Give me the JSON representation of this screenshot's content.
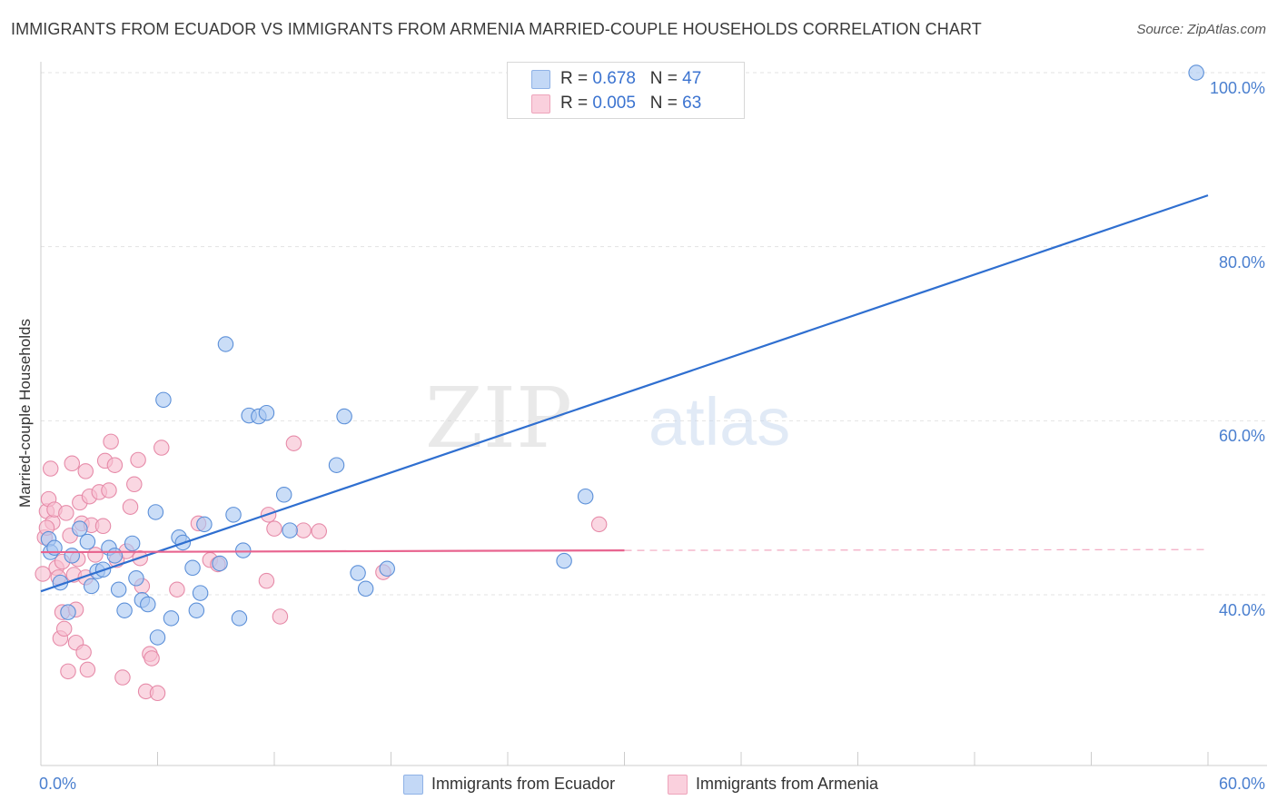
{
  "header": {
    "title": "IMMIGRANTS FROM ECUADOR VS IMMIGRANTS FROM ARMENIA MARRIED-COUPLE HOUSEHOLDS CORRELATION CHART",
    "source": "Source: ZipAtlas.com"
  },
  "legend": {
    "rows": [
      {
        "r_label": "R = ",
        "r_value": "0.678",
        "n_label": "N = ",
        "n_value": "47"
      },
      {
        "r_label": "R = ",
        "r_value": "0.005",
        "n_label": "N = ",
        "n_value": "63"
      }
    ],
    "bottom": [
      "Immigrants from Ecuador",
      "Immigrants from Armenia"
    ]
  },
  "watermark": {
    "zip": "ZIP",
    "atlas": "atlas"
  },
  "colors": {
    "ecuador_fill": "#aac8f2",
    "ecuador_stroke": "#5b8fd8",
    "ecuador_line": "#2f6fd0",
    "armenia_fill": "#f7bfd0",
    "armenia_stroke": "#e68aa8",
    "armenia_line": "#e8648f",
    "tick_text": "#4a7fcf"
  },
  "chart_data": {
    "type": "scatter",
    "title": "IMMIGRANTS FROM ECUADOR VS IMMIGRANTS FROM ARMENIA MARRIED-COUPLE HOUSEHOLDS CORRELATION CHART",
    "xlabel": "",
    "ylabel": "Married-couple Households",
    "xlim": [
      0,
      60
    ],
    "ylim": [
      20,
      101
    ],
    "x_tick_labels": [
      "0.0%",
      "60.0%"
    ],
    "y_ticks": [
      40,
      60,
      80,
      100
    ],
    "y_tick_labels": [
      "40.0%",
      "60.0%",
      "80.0%",
      "100.0%"
    ],
    "grid": true,
    "legend_position": "top-center",
    "series": [
      {
        "name": "Immigrants from Ecuador",
        "r": 0.678,
        "n": 47,
        "trend": {
          "x": [
            0,
            60
          ],
          "y": [
            40.4,
            85.9
          ],
          "style": "solid"
        },
        "points": [
          [
            0.4,
            46.4
          ],
          [
            0.5,
            44.9
          ],
          [
            0.7,
            45.4
          ],
          [
            1.0,
            41.4
          ],
          [
            1.4,
            38.0
          ],
          [
            1.6,
            44.5
          ],
          [
            2.0,
            47.6
          ],
          [
            2.4,
            46.1
          ],
          [
            2.6,
            41.0
          ],
          [
            2.9,
            42.7
          ],
          [
            3.2,
            42.9
          ],
          [
            3.5,
            45.4
          ],
          [
            3.8,
            44.5
          ],
          [
            4.0,
            40.6
          ],
          [
            4.3,
            38.2
          ],
          [
            4.7,
            45.9
          ],
          [
            4.9,
            41.9
          ],
          [
            5.2,
            39.4
          ],
          [
            5.5,
            38.9
          ],
          [
            5.9,
            49.5
          ],
          [
            6.0,
            35.1
          ],
          [
            6.3,
            62.4
          ],
          [
            6.7,
            37.3
          ],
          [
            7.1,
            46.6
          ],
          [
            7.3,
            46.0
          ],
          [
            7.8,
            43.1
          ],
          [
            8.0,
            38.2
          ],
          [
            8.2,
            40.2
          ],
          [
            8.4,
            48.1
          ],
          [
            9.2,
            43.6
          ],
          [
            9.5,
            68.8
          ],
          [
            9.9,
            49.2
          ],
          [
            10.2,
            37.3
          ],
          [
            10.4,
            45.1
          ],
          [
            10.7,
            60.6
          ],
          [
            11.2,
            60.5
          ],
          [
            11.6,
            60.9
          ],
          [
            12.5,
            51.5
          ],
          [
            12.8,
            47.4
          ],
          [
            15.2,
            54.9
          ],
          [
            15.6,
            60.5
          ],
          [
            16.3,
            42.5
          ],
          [
            16.7,
            40.7
          ],
          [
            17.8,
            43.0
          ],
          [
            26.9,
            43.9
          ],
          [
            28.0,
            51.3
          ],
          [
            59.4,
            100.0
          ]
        ]
      },
      {
        "name": "Immigrants from Armenia",
        "r": 0.005,
        "n": 63,
        "trend": {
          "x": [
            0,
            30
          ],
          "y": [
            44.9,
            45.1
          ],
          "style": "solid",
          "extended_x": [
            30,
            60
          ],
          "extended_style": "dashed"
        },
        "points": [
          [
            0.1,
            42.4
          ],
          [
            0.2,
            46.6
          ],
          [
            0.3,
            49.6
          ],
          [
            0.4,
            51.0
          ],
          [
            0.5,
            54.5
          ],
          [
            0.6,
            48.3
          ],
          [
            0.7,
            49.8
          ],
          [
            0.8,
            43.1
          ],
          [
            0.9,
            42.0
          ],
          [
            1.0,
            35.0
          ],
          [
            1.1,
            38.0
          ],
          [
            1.2,
            36.1
          ],
          [
            1.3,
            49.4
          ],
          [
            1.4,
            31.2
          ],
          [
            1.5,
            46.8
          ],
          [
            1.6,
            55.1
          ],
          [
            1.7,
            42.3
          ],
          [
            1.8,
            34.5
          ],
          [
            1.9,
            44.1
          ],
          [
            2.0,
            50.6
          ],
          [
            2.1,
            48.2
          ],
          [
            2.2,
            33.4
          ],
          [
            2.3,
            54.2
          ],
          [
            2.4,
            31.4
          ],
          [
            2.5,
            51.3
          ],
          [
            2.6,
            48.0
          ],
          [
            2.8,
            44.6
          ],
          [
            3.0,
            51.8
          ],
          [
            3.2,
            47.9
          ],
          [
            3.3,
            55.4
          ],
          [
            3.5,
            52.0
          ],
          [
            3.6,
            57.6
          ],
          [
            3.8,
            54.9
          ],
          [
            3.9,
            44.0
          ],
          [
            4.2,
            30.5
          ],
          [
            4.4,
            45.0
          ],
          [
            4.6,
            50.1
          ],
          [
            4.8,
            52.7
          ],
          [
            5.0,
            55.5
          ],
          [
            5.1,
            44.2
          ],
          [
            5.2,
            41.0
          ],
          [
            5.4,
            28.9
          ],
          [
            5.6,
            33.2
          ],
          [
            5.7,
            32.7
          ],
          [
            6.0,
            28.7
          ],
          [
            6.2,
            56.9
          ],
          [
            7.0,
            40.6
          ],
          [
            8.1,
            48.2
          ],
          [
            8.7,
            44.0
          ],
          [
            9.1,
            43.5
          ],
          [
            11.6,
            41.6
          ],
          [
            11.7,
            49.2
          ],
          [
            12.0,
            47.6
          ],
          [
            12.3,
            37.5
          ],
          [
            13.0,
            57.4
          ],
          [
            13.5,
            47.4
          ],
          [
            14.3,
            47.3
          ],
          [
            17.6,
            42.6
          ],
          [
            28.7,
            48.1
          ],
          [
            1.1,
            43.8
          ],
          [
            2.3,
            42.0
          ],
          [
            0.3,
            47.7
          ],
          [
            1.8,
            38.3
          ]
        ]
      }
    ]
  }
}
